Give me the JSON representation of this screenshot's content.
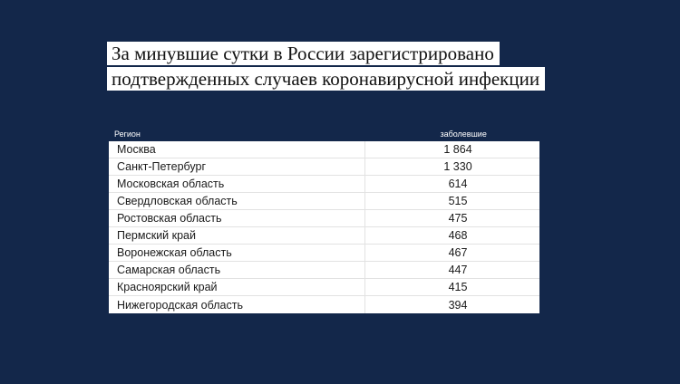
{
  "title": {
    "line1": "За минувшие сутки в России зарегистрировано",
    "line2": "подтвержденных случаев коронавирусной инфекции"
  },
  "table": {
    "headers": {
      "region": "Регион",
      "cases": "заболевшие"
    },
    "rows": [
      {
        "region": "Москва",
        "cases": "1 864"
      },
      {
        "region": "Санкт-Петербург",
        "cases": "1 330"
      },
      {
        "region": "Московская область",
        "cases": "614"
      },
      {
        "region": "Свердловская область",
        "cases": "515"
      },
      {
        "region": "Ростовская область",
        "cases": "475"
      },
      {
        "region": "Пермский край",
        "cases": "468"
      },
      {
        "region": "Воронежская область",
        "cases": "467"
      },
      {
        "region": "Самарская область",
        "cases": "447"
      },
      {
        "region": "Красноярский край",
        "cases": "415"
      },
      {
        "region": "Нижегородская область",
        "cases": "394"
      }
    ]
  },
  "colors": {
    "background": "#13274a",
    "table_background": "#ffffff",
    "title_background": "#ffffff"
  }
}
